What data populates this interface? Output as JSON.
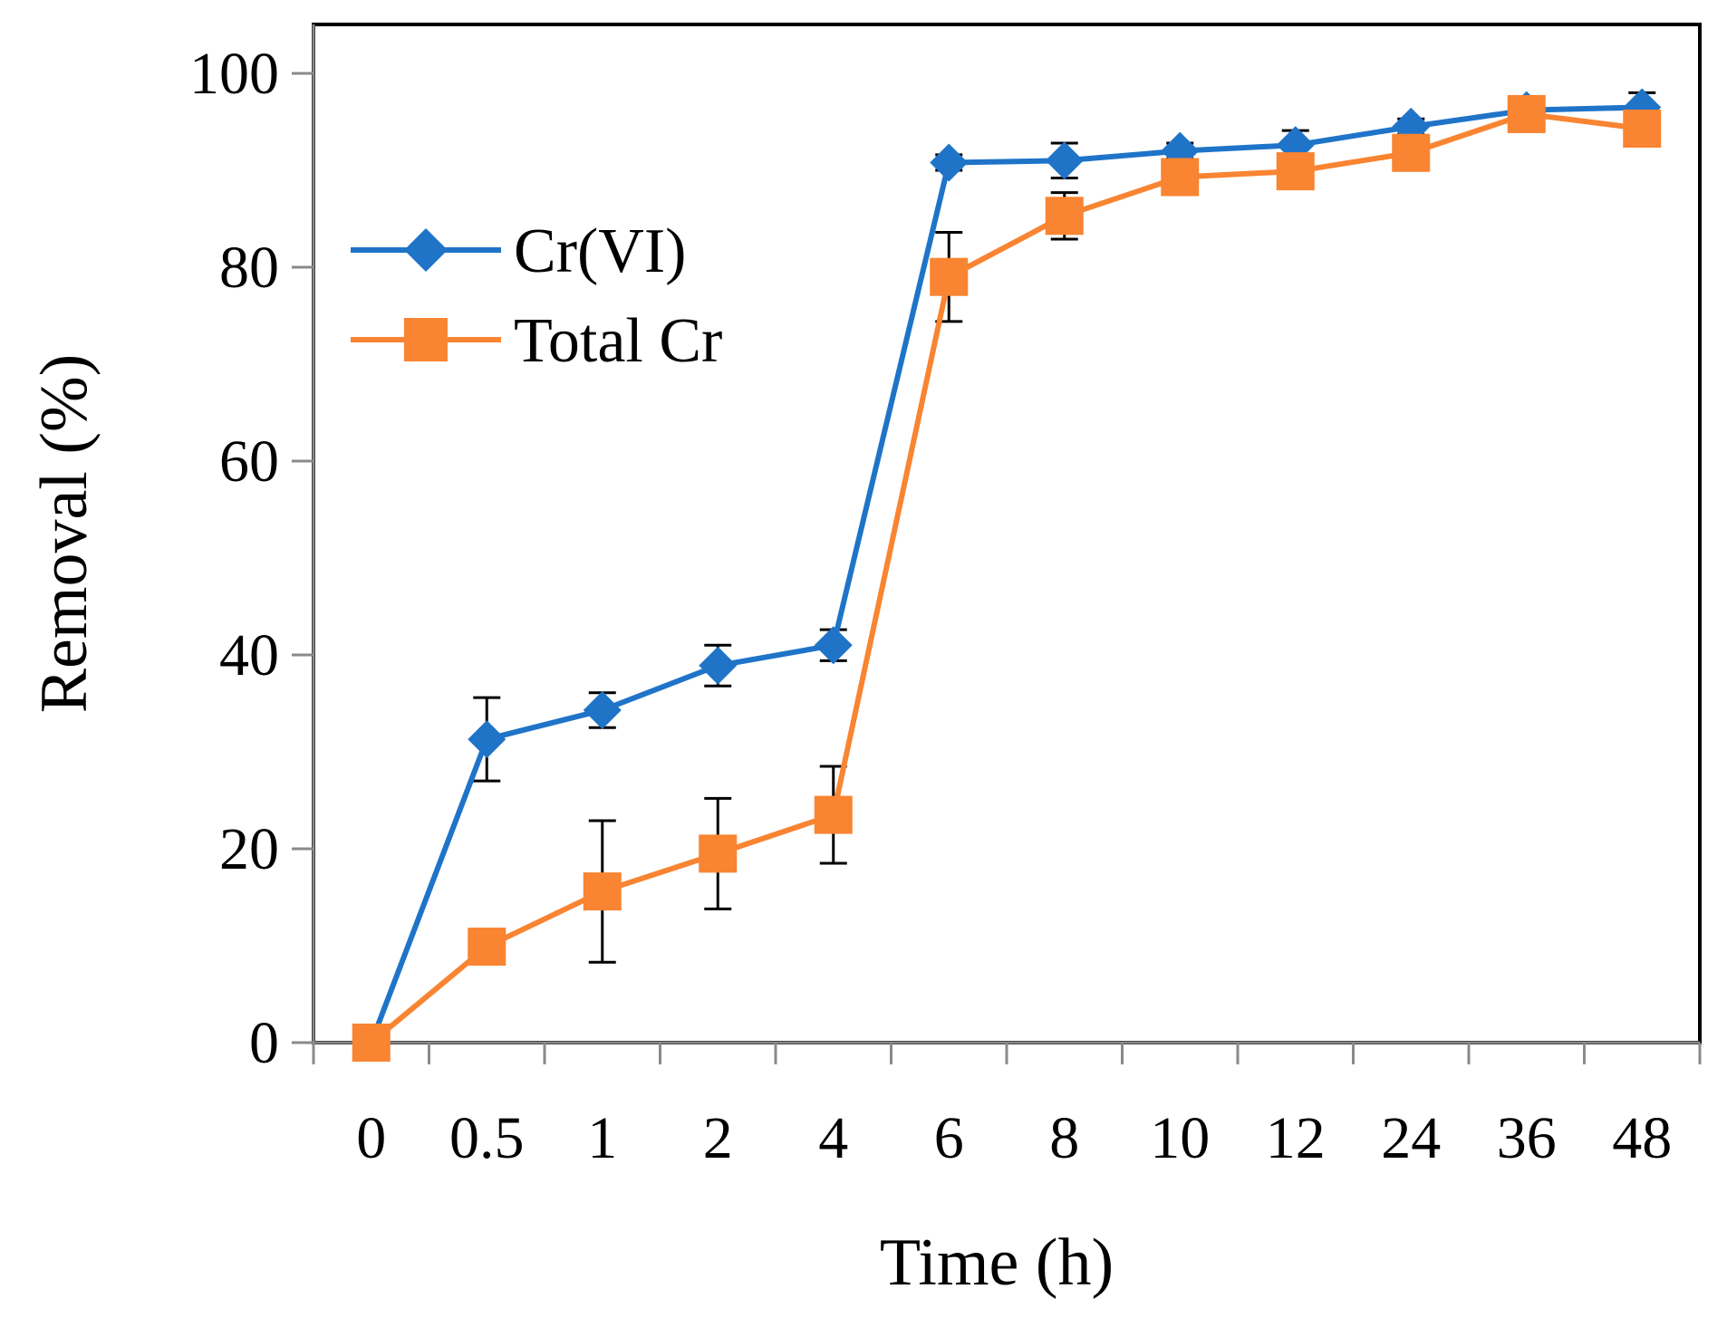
{
  "chart_data": {
    "type": "line",
    "title": "",
    "xlabel": "Time (h)",
    "ylabel": "Removal (%)",
    "categories": [
      "0",
      "0.5",
      "1",
      "2",
      "4",
      "6",
      "8",
      "10",
      "12",
      "24",
      "36",
      "48"
    ],
    "ylim": [
      0,
      100
    ],
    "yticks": [
      0,
      20,
      40,
      60,
      80,
      100
    ],
    "legend_position": "left, upper-middle",
    "grid": false,
    "series": [
      {
        "name": "Cr(VI)",
        "color": "#1F74C8",
        "marker": "diamond",
        "values": [
          0,
          31.3,
          34.3,
          38.9,
          41.0,
          90.8,
          91.0,
          92.0,
          92.6,
          94.5,
          96.2,
          96.5
        ],
        "errors": [
          0,
          4.3,
          1.8,
          2.1,
          1.6,
          0.8,
          1.8,
          0.8,
          1.5,
          0.8,
          0.8,
          1.5
        ]
      },
      {
        "name": "Total Cr",
        "color": "#F98431",
        "marker": "square",
        "values": [
          0,
          9.9,
          15.6,
          19.5,
          23.5,
          79.0,
          85.3,
          89.3,
          89.9,
          91.8,
          95.8,
          94.3
        ],
        "errors": [
          0,
          0.8,
          7.3,
          5.7,
          5.0,
          4.6,
          2.4,
          1.0,
          1.0,
          1.0,
          0.6,
          0.6
        ]
      }
    ]
  }
}
